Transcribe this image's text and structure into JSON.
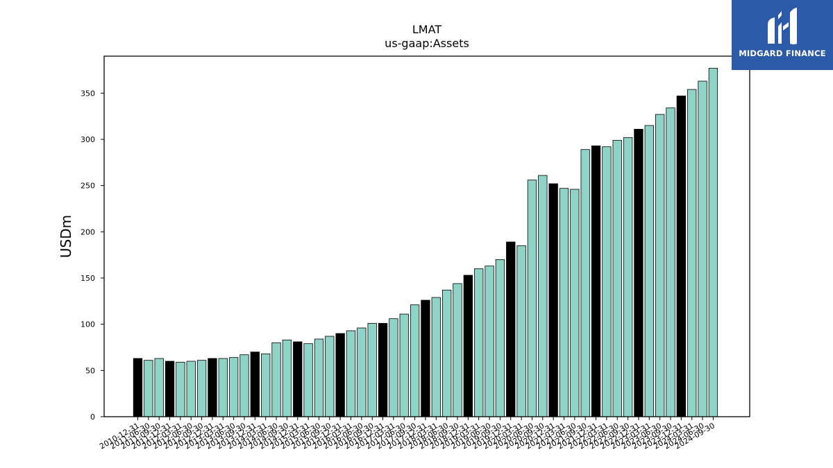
{
  "chart_data": {
    "type": "bar",
    "title": "LMAT",
    "subtitle": "us-gaap:Assets",
    "ylabel": "USDm",
    "xlabel": "",
    "ylim": [
      0,
      390
    ],
    "yticks": [
      0,
      50,
      100,
      150,
      200,
      250,
      300,
      350
    ],
    "grid": false,
    "colors": {
      "annual": "#000000",
      "quarter": "#8fd3c6",
      "edge": "#000000"
    },
    "categories": [
      "2010-12-31",
      "2011-06-30",
      "2011-09-30",
      "2011-12-31",
      "2012-03-31",
      "2012-06-30",
      "2012-09-30",
      "2012-12-31",
      "2013-03-31",
      "2013-06-30",
      "2013-09-30",
      "2013-12-31",
      "2014-03-31",
      "2014-06-30",
      "2014-09-30",
      "2014-12-31",
      "2015-03-31",
      "2015-06-30",
      "2015-09-30",
      "2015-12-31",
      "2016-03-31",
      "2016-06-30",
      "2016-09-30",
      "2016-12-31",
      "2017-03-31",
      "2017-06-30",
      "2017-09-30",
      "2017-12-31",
      "2018-03-31",
      "2018-06-30",
      "2018-09-30",
      "2018-12-31",
      "2019-03-31",
      "2019-06-30",
      "2019-09-30",
      "2019-12-31",
      "2020-03-31",
      "2020-06-30",
      "2020-09-30",
      "2020-12-31",
      "2021-03-31",
      "2021-06-30",
      "2021-09-30",
      "2021-12-31",
      "2022-03-31",
      "2022-06-30",
      "2022-09-30",
      "2022-12-31",
      "2023-03-31",
      "2023-06-30",
      "2023-09-30",
      "2023-12-31",
      "2024-03-31",
      "2024-06-30",
      "2024-09-30"
    ],
    "values": [
      63,
      61,
      63,
      60,
      59,
      60,
      61,
      63,
      63,
      64,
      67,
      70,
      68,
      80,
      83,
      81,
      79,
      84,
      87,
      90,
      93,
      96,
      101,
      101,
      106,
      111,
      121,
      126,
      129,
      137,
      144,
      153,
      160,
      163,
      170,
      189,
      185,
      256,
      261,
      252,
      247,
      246,
      289,
      293,
      292,
      299,
      302,
      311,
      315,
      327,
      334,
      347,
      354,
      363,
      377
    ],
    "annual": [
      true,
      false,
      false,
      true,
      false,
      false,
      false,
      true,
      false,
      false,
      false,
      true,
      false,
      false,
      false,
      true,
      false,
      false,
      false,
      true,
      false,
      false,
      false,
      true,
      false,
      false,
      false,
      true,
      false,
      false,
      false,
      true,
      false,
      false,
      false,
      true,
      false,
      false,
      false,
      true,
      false,
      false,
      false,
      true,
      false,
      false,
      false,
      true,
      false,
      false,
      false,
      true,
      false,
      false,
      false
    ]
  },
  "logo": {
    "text": "MIDGARD FINANCE",
    "icon": "midgard-logo-icon"
  }
}
